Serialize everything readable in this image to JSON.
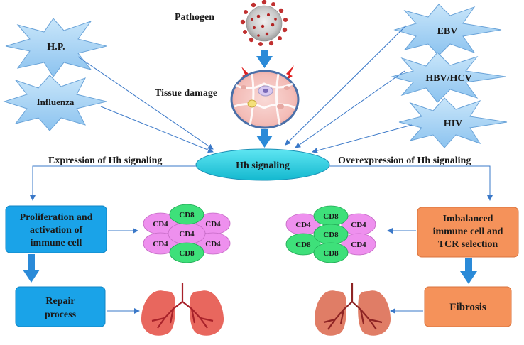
{
  "pathogen_label": "Pathogen",
  "tissue_damage_label": "Tissue damage",
  "center_label": "Hh signaling",
  "left_branch_label": "Expression of Hh signaling",
  "right_branch_label": "Overexpression of Hh signaling",
  "stars": {
    "hp": "H.P.",
    "influenza": "Influenza",
    "ebv": "EBV",
    "hbv_hcv": "HBV/HCV",
    "hiv": "HIV"
  },
  "boxes": {
    "proliferation_line1": "Proliferation and",
    "proliferation_line2": "activation of",
    "proliferation_line3": "immune cell",
    "repair_line1": "Repair",
    "repair_line2": "process",
    "imbalanced_line1": "Imbalanced",
    "imbalanced_line2": "immune cell and",
    "imbalanced_line3": "TCR selection",
    "fibrosis": "Fibrosis"
  },
  "cells": {
    "cd4": "CD4",
    "cd8": "CD8"
  },
  "colors": {
    "blue_box": "#1aa3e8",
    "orange_box": "#f5925a",
    "star_fill": "#a8d4f5",
    "cd4_fill": "#ee90ee",
    "cd8_fill": "#3ee07a",
    "center_fill": "#27d3e6",
    "arrow_blue": "#2b7fd4"
  }
}
